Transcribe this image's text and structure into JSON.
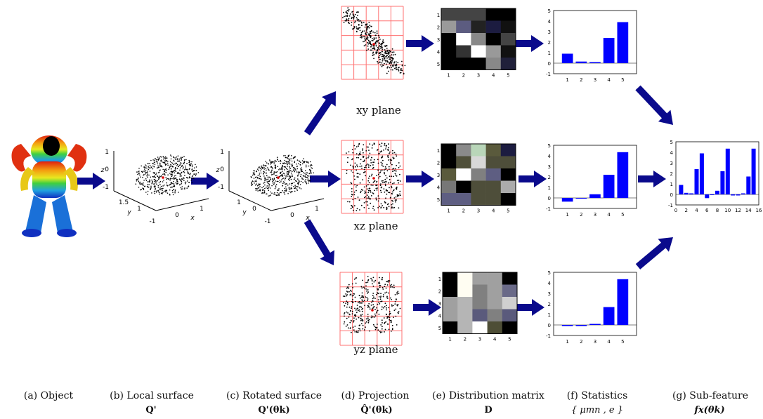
{
  "captions": {
    "a": "(a) Object",
    "b": "(b) Local surface",
    "c": "(c) Rotated surface",
    "d": "(d) Projection",
    "e": "(e) Distribution matrix",
    "f": "(f) Statistics",
    "g": "(g) Sub-feature"
  },
  "symbols": {
    "b": "Q'",
    "c": "Q'(θk)",
    "d": "Q̂'(θk)",
    "e": "D",
    "f": "{ μmn , e }",
    "g": "fx(θk)"
  },
  "planes": [
    "xy plane",
    "xz plane",
    "yz plane"
  ],
  "axes_3d": {
    "b": {
      "z": "z",
      "y": "y",
      "x": "x",
      "zt": [
        "1",
        "0",
        "-1"
      ],
      "yt": [
        "1.5",
        "1"
      ],
      "xt": [
        "-1",
        "0",
        "1"
      ]
    },
    "c": {
      "z": "z",
      "y": "y",
      "x": "x",
      "zt": [
        "1",
        "0",
        "-1"
      ],
      "yt": [
        "1",
        "0"
      ],
      "xt": [
        "-1",
        "0",
        "1"
      ]
    }
  },
  "matrices": [
    {
      "rows": [
        "1",
        "2",
        "3",
        "4",
        "5"
      ],
      "cols": [
        "1",
        "2",
        "3",
        "4",
        "5"
      ],
      "cells": [
        "#444444",
        "#444444",
        "#444444",
        "#000000",
        "#000000",
        "#9a9a9a",
        "#5c5c80",
        "#222222",
        "#1c1c40",
        "#111111",
        "#000000",
        "#ffffff",
        "#888888",
        "#000000",
        "#444444",
        "#000000",
        "#333333",
        "#ffffff",
        "#999999",
        "#111111",
        "#000000",
        "#000000",
        "#000000",
        "#888888",
        "#20203a"
      ]
    },
    {
      "rows": [
        "1",
        "2",
        "3",
        "4",
        "5"
      ],
      "cols": [
        "1",
        "2",
        "3",
        "4",
        "5"
      ],
      "cells": [
        "#000000",
        "#8a8a8a",
        "#b9d6b9",
        "#5a5a3c",
        "#1c1c40",
        "#000000",
        "#50503a",
        "#d8d8d8",
        "#4e4e3a",
        "#4e4e3a",
        "#5a5a3c",
        "#ffffff",
        "#808080",
        "#5e5e82",
        "#000000",
        "#777777",
        "#000000",
        "#4e4e3a",
        "#4e4e3a",
        "#ababab",
        "#5e5e82",
        "#5e5e82",
        "#4e4e3a",
        "#4e4e3a",
        "#000000"
      ]
    },
    {
      "rows": [
        "1",
        "2",
        "3",
        "4",
        "5"
      ],
      "cols": [
        "1",
        "2",
        "3",
        "4",
        "5"
      ],
      "cells": [
        "#000000",
        "#fffdf2",
        "#a0a0a0",
        "#a0a0a0",
        "#000000",
        "#000000",
        "#fffdf2",
        "#808080",
        "#a0a0a0",
        "#6a6a88",
        "#a0a0a0",
        "#b5b5b5",
        "#808080",
        "#a0a0a0",
        "#d0d0d0",
        "#a0a0a0",
        "#b5b5b5",
        "#5a5a7c",
        "#808080",
        "#5a5a7c",
        "#000000",
        "#b5b5b5",
        "#ffffff",
        "#4e4e36",
        "#000000"
      ]
    }
  ],
  "chart_data": [
    {
      "type": "bar",
      "categories": [
        "1",
        "2",
        "3",
        "4",
        "5"
      ],
      "values": [
        0.9,
        0.15,
        0.1,
        2.4,
        3.9
      ],
      "ylim": [
        -1,
        5
      ],
      "yticks": [
        "5",
        "4",
        "3",
        "2",
        "1",
        "0",
        "-1"
      ]
    },
    {
      "type": "bar",
      "categories": [
        "1",
        "2",
        "3",
        "4",
        "5"
      ],
      "values": [
        -0.35,
        -0.05,
        0.35,
        2.2,
        4.35
      ],
      "ylim": [
        -1,
        5
      ],
      "yticks": [
        "5",
        "4",
        "3",
        "2",
        "1",
        "0",
        "-1"
      ]
    },
    {
      "type": "bar",
      "categories": [
        "1",
        "2",
        "3",
        "4",
        "5"
      ],
      "values": [
        -0.1,
        -0.1,
        0.1,
        1.7,
        4.35
      ],
      "ylim": [
        -1,
        5
      ],
      "yticks": [
        "5",
        "4",
        "3",
        "2",
        "1",
        "0",
        "-1"
      ]
    },
    {
      "type": "bar",
      "categories": [
        "0",
        "2",
        "4",
        "6",
        "8",
        "10",
        "12",
        "14",
        "16"
      ],
      "x": [
        1,
        2,
        3,
        4,
        5,
        6,
        7,
        8,
        9,
        10,
        11,
        12,
        13,
        14,
        15
      ],
      "values": [
        0.9,
        0.15,
        0.1,
        2.4,
        3.9,
        -0.35,
        -0.05,
        0.35,
        2.2,
        4.35,
        -0.1,
        -0.1,
        0.1,
        1.7,
        4.35
      ],
      "xlim": [
        0,
        16
      ],
      "ylim": [
        -1,
        5
      ],
      "yticks": [
        "5",
        "4",
        "3",
        "2",
        "1",
        "0",
        "-1"
      ]
    }
  ],
  "colors": {
    "arrow": "#0a0a8c",
    "bar": "#0000ff",
    "grid": "#ff7070"
  }
}
